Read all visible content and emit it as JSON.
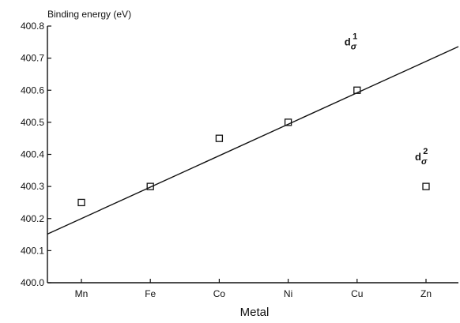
{
  "chart_data": {
    "type": "scatter",
    "title": "",
    "ylabel": "Binding energy (eV)",
    "xlabel": "Metal",
    "categories": [
      "Mn",
      "Fe",
      "Co",
      "Ni",
      "Cu",
      "Zn"
    ],
    "ylim": [
      400.0,
      400.8
    ],
    "yticks": [
      "400.0",
      "400.1",
      "400.2",
      "400.3",
      "400.4",
      "400.5",
      "400.6",
      "400.7",
      "400.8"
    ],
    "series": [
      {
        "values": [
          400.25,
          400.3,
          400.45,
          400.5,
          400.6,
          400.3
        ],
        "marker": "open-square"
      }
    ],
    "fit_line": {
      "from": {
        "x": "Mn",
        "y": 400.2
      },
      "to": {
        "x": "Zn",
        "y": 400.69
      },
      "extends_to_right_edge": true
    },
    "annotations": [
      {
        "base": "d",
        "sub": "σ",
        "sup": "1",
        "near": "Cu"
      },
      {
        "base": "d",
        "sub": "σ",
        "sup": "2",
        "near": "Zn"
      }
    ],
    "grid": false,
    "colors": {
      "ink": "#111111",
      "background": "#ffffff"
    }
  }
}
